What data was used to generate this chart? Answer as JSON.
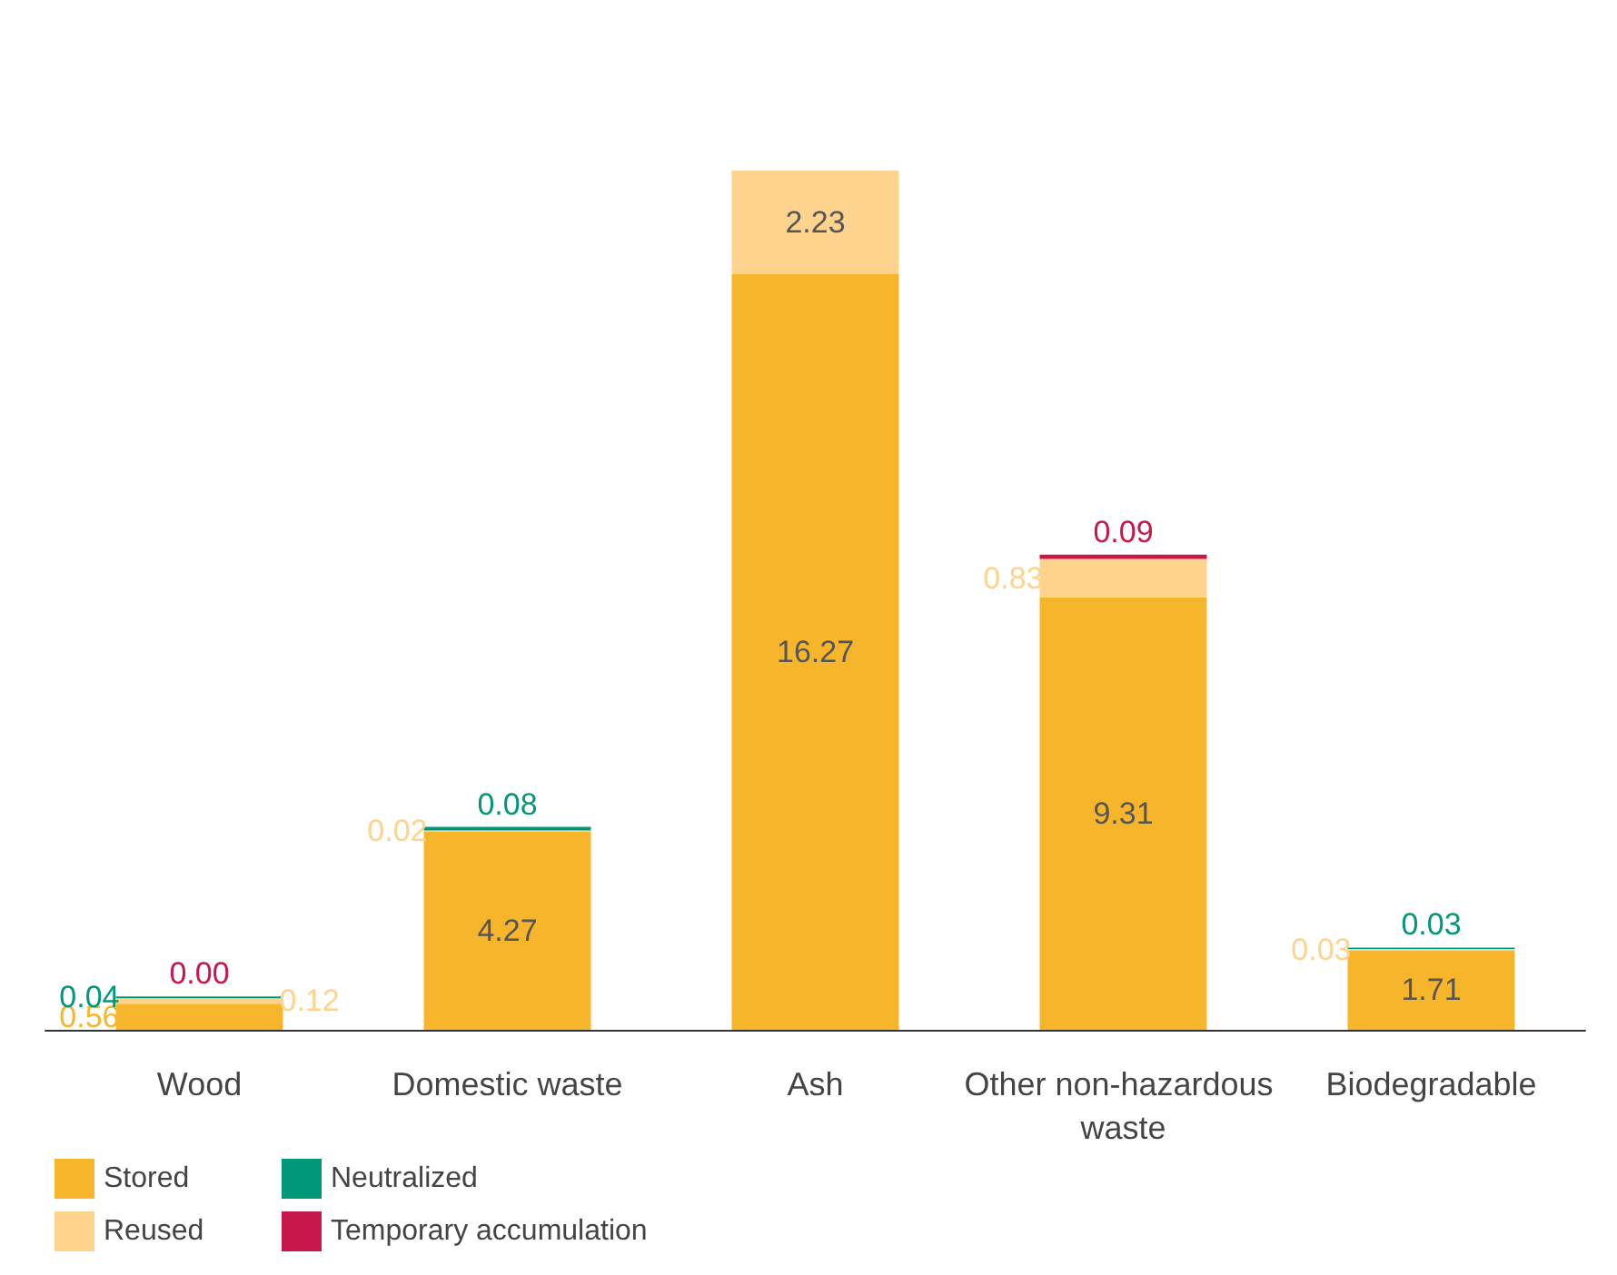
{
  "chart_data": {
    "type": "bar",
    "stacked": true,
    "legend": "bottom left",
    "categories": [
      "Wood",
      "Domestic waste",
      "Ash",
      "Other non-hazardous waste",
      "Biodegradable"
    ],
    "series": [
      {
        "name": "Stored",
        "color": "#f7b52c",
        "values": [
          0.56,
          4.27,
          16.27,
          9.31,
          1.71
        ],
        "value_labels": [
          "0.56",
          "4.27",
          "16.27",
          "9.31",
          "1.71"
        ]
      },
      {
        "name": "Reused",
        "color": "#fdd38e",
        "values": [
          0.12,
          0.02,
          2.23,
          0.83,
          0.03
        ],
        "value_labels": [
          "0.12",
          "0.02",
          "2.23",
          "0.83",
          "0.03"
        ]
      },
      {
        "name": "Neutralized",
        "color": "#00977a",
        "values": [
          0.04,
          0.08,
          null,
          null,
          0.03
        ],
        "value_labels": [
          "0.04",
          "0.08",
          null,
          null,
          "0.03"
        ]
      },
      {
        "name": "Temporary accumulation",
        "color": "#c8174a",
        "values": [
          0,
          null,
          null,
          0.09,
          null
        ],
        "value_labels": [
          "0.00",
          null,
          null,
          "0.09",
          null
        ]
      }
    ]
  }
}
